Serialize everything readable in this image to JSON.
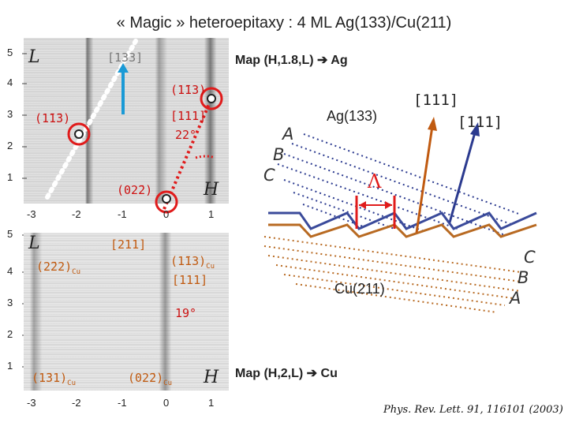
{
  "title": "« Magic » heteroepitaxy : 4 ML Ag(133)/Cu(211)",
  "top_map": {
    "map_label": "Map (H,1.8,L)",
    "map_target": "Ag",
    "axis_l": "L",
    "axis_h": "H",
    "y_ticks": [
      "5",
      "4",
      "3",
      "2",
      "1"
    ],
    "x_ticks": [
      "-3",
      "-2",
      "-1",
      "0",
      "1"
    ],
    "labels": {
      "dir_133": "[133]",
      "refl_113_a": "(1̄13)",
      "refl_113_b": "(1̄1̄3)",
      "dir_111": "[111]",
      "angle": "22°",
      "refl_022": "(02̄2)"
    }
  },
  "bottom_map": {
    "map_label": "Map (H,2,L)",
    "map_target": "Cu",
    "axis_l": "L",
    "axis_h": "H",
    "y_ticks": [
      "5",
      "4",
      "3",
      "2",
      "1"
    ],
    "x_ticks": [
      "-3",
      "-2",
      "-1",
      "0",
      "1"
    ],
    "labels": {
      "dir_211": "[211]",
      "refl_222": "(2̄22)",
      "refl_222_sub": "Cu",
      "refl_113": "(1̄13)",
      "refl_113_sub": "Cu",
      "dir_111": "[111]",
      "angle": "19°",
      "refl_131": "(1̄31)",
      "refl_131_sub": "Cu",
      "refl_022": "(02̄2)",
      "refl_022_sub": "Cu"
    }
  },
  "schematic": {
    "ag_label": "Ag(133)",
    "cu_label": "Cu(211)",
    "dir_orange": "[111]",
    "dir_blue": "[111]",
    "lambda": "Λ",
    "ag_layers": [
      "A",
      "B",
      "C"
    ],
    "cu_layers": [
      "C",
      "B",
      "A"
    ]
  },
  "reference": "Phys. Rev. Lett. 91, 116101 (2003)",
  "colors": {
    "blue": "#1a9ad6",
    "orange": "#c05a10",
    "red": "#e01b1b",
    "navy": "#2b3a8f",
    "ag_step": "#3a4a9a",
    "cu_step": "#b86a22"
  }
}
